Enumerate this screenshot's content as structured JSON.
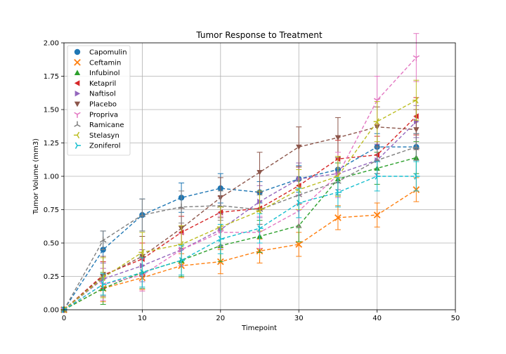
{
  "chart_data": {
    "type": "line",
    "title": "Tumor Response to Treatment",
    "xlabel": "Timepoint",
    "ylabel": "Tumor Volume (mm3)",
    "xlim": [
      0,
      50
    ],
    "ylim": [
      0,
      2.0
    ],
    "xticks": [
      0,
      10,
      20,
      30,
      40,
      50
    ],
    "yticks": [
      0.0,
      0.25,
      0.5,
      0.75,
      1.0,
      1.25,
      1.5,
      1.75,
      2.0
    ],
    "xtick_labels": [
      "0",
      "10",
      "20",
      "30",
      "40",
      "50"
    ],
    "ytick_labels": [
      "0.00",
      "0.25",
      "0.50",
      "0.75",
      "1.00",
      "1.25",
      "1.50",
      "1.75",
      "2.00"
    ],
    "grid": true,
    "legend_position": "top-left",
    "x": [
      0,
      5,
      10,
      15,
      20,
      25,
      30,
      35,
      40,
      45
    ],
    "series": [
      {
        "name": "Capomulin",
        "color": "#1f77b4",
        "marker": "circle",
        "values": [
          0,
          0.45,
          0.71,
          0.84,
          0.91,
          0.88,
          0.98,
          1.05,
          1.22,
          1.22
        ],
        "errors": [
          0,
          0.14,
          0.12,
          0.11,
          0.11,
          0.08,
          0.1,
          0.1,
          0.1,
          0.1
        ]
      },
      {
        "name": "Ceftamin",
        "color": "#ff7f0e",
        "marker": "x",
        "values": [
          0,
          0.16,
          0.24,
          0.33,
          0.36,
          0.44,
          0.49,
          0.69,
          0.71,
          0.9
        ],
        "errors": [
          0,
          0.1,
          0.09,
          0.09,
          0.09,
          0.09,
          0.09,
          0.09,
          0.09,
          0.09
        ]
      },
      {
        "name": "Infubinol",
        "color": "#2ca02c",
        "marker": "triangle-up",
        "values": [
          0,
          0.16,
          0.28,
          0.37,
          0.48,
          0.55,
          0.63,
          0.98,
          1.06,
          1.14
        ],
        "errors": [
          0,
          0.12,
          0.12,
          0.12,
          0.12,
          0.12,
          0.12,
          0.12,
          0.12,
          0.12
        ]
      },
      {
        "name": "Ketapril",
        "color": "#d62728",
        "marker": "triangle-left",
        "values": [
          0,
          0.26,
          0.38,
          0.58,
          0.73,
          0.76,
          0.93,
          1.13,
          1.16,
          1.45
        ],
        "errors": [
          0,
          0.1,
          0.12,
          0.12,
          0.12,
          0.12,
          0.14,
          0.14,
          0.14,
          0.14
        ]
      },
      {
        "name": "Naftisol",
        "color": "#9467bd",
        "marker": "triangle-right",
        "values": [
          0,
          0.23,
          0.33,
          0.45,
          0.6,
          0.81,
          0.98,
          1.02,
          1.12,
          1.41
        ],
        "errors": [
          0,
          0.12,
          0.12,
          0.12,
          0.12,
          0.12,
          0.12,
          0.12,
          0.12,
          0.12
        ]
      },
      {
        "name": "Placebo",
        "color": "#8c564b",
        "marker": "triangle-down",
        "values": [
          0,
          0.25,
          0.4,
          0.61,
          0.84,
          1.03,
          1.22,
          1.29,
          1.37,
          1.35
        ],
        "errors": [
          0,
          0.15,
          0.15,
          0.15,
          0.15,
          0.15,
          0.15,
          0.15,
          0.15,
          0.15
        ]
      },
      {
        "name": "Propriva",
        "color": "#e377c2",
        "marker": "tri-down",
        "values": [
          0,
          0.19,
          0.26,
          0.45,
          0.58,
          0.58,
          0.74,
          1.01,
          1.57,
          1.89
        ],
        "errors": [
          0,
          0.12,
          0.12,
          0.12,
          0.12,
          0.12,
          0.12,
          0.17,
          0.18,
          0.18
        ]
      },
      {
        "name": "Ramicane",
        "color": "#7f7f7f",
        "marker": "tri-up",
        "values": [
          0,
          0.52,
          0.71,
          0.77,
          0.78,
          0.75,
          0.86,
          0.96,
          1.12,
          1.22
        ],
        "errors": [
          0,
          0.07,
          0.12,
          0.12,
          0.11,
          0.11,
          0.11,
          0.1,
          0.1,
          0.1
        ]
      },
      {
        "name": "Stelasyn",
        "color": "#bcbd22",
        "marker": "tri-left",
        "values": [
          0,
          0.24,
          0.43,
          0.49,
          0.62,
          0.74,
          0.9,
          1.0,
          1.41,
          1.57
        ],
        "errors": [
          0,
          0.15,
          0.15,
          0.14,
          0.15,
          0.15,
          0.15,
          0.15,
          0.15,
          0.15
        ]
      },
      {
        "name": "Zoniferol",
        "color": "#17becf",
        "marker": "tri-right",
        "values": [
          0,
          0.19,
          0.28,
          0.37,
          0.53,
          0.61,
          0.8,
          0.88,
          1.0,
          1.0
        ],
        "errors": [
          0,
          0.08,
          0.11,
          0.11,
          0.11,
          0.11,
          0.11,
          0.11,
          0.11,
          0.11
        ]
      }
    ]
  }
}
